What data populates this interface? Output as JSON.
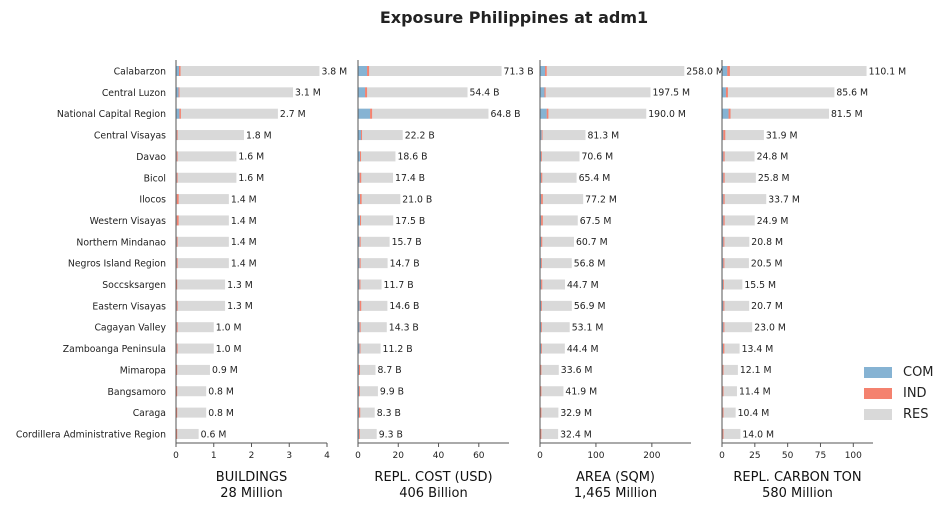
{
  "title": "Exposure Philippines at adm1",
  "regions": [
    "Calabarzon",
    "Central Luzon",
    "National Capital Region",
    "Central Visayas",
    "Davao",
    "Bicol",
    "Ilocos",
    "Western Visayas",
    "Northern Mindanao",
    "Negros Island Region",
    "Soccsksargen",
    "Eastern Visayas",
    "Cagayan Valley",
    "Zamboanga Peninsula",
    "Mimaropa",
    "Bangsamoro",
    "Caraga",
    "Cordillera Administrative Region"
  ],
  "legend": [
    {
      "label": "COM",
      "color": "#86b3d3"
    },
    {
      "label": "IND",
      "color": "#f4826f"
    },
    {
      "label": "RES",
      "color": "#d9d9d9"
    }
  ],
  "chart_data": [
    {
      "type": "bar",
      "orientation": "horizontal",
      "stacked": true,
      "xlabel": "BUILDINGS",
      "subtitle": "28 Million",
      "xlim": [
        0,
        4
      ],
      "ticks": [
        0,
        1,
        2,
        3,
        4
      ],
      "total": [
        3.8,
        3.1,
        2.7,
        1.8,
        1.6,
        1.6,
        1.4,
        1.4,
        1.4,
        1.4,
        1.3,
        1.3,
        1.0,
        1.0,
        0.9,
        0.8,
        0.8,
        0.6
      ],
      "labels": [
        "3.8 M",
        "3.1 M",
        "2.7 M",
        "1.8 M",
        "1.6 M",
        "1.6 M",
        "1.4 M",
        "1.4 M",
        "1.4 M",
        "1.4 M",
        "1.3 M",
        "1.3 M",
        "1.0 M",
        "1.0 M",
        "0.9 M",
        "0.8 M",
        "0.8 M",
        "0.6 M"
      ],
      "COM": [
        0.08,
        0.07,
        0.09,
        0.02,
        0.02,
        0.02,
        0.02,
        0.02,
        0.02,
        0.02,
        0.01,
        0.02,
        0.02,
        0.02,
        0.01,
        0.01,
        0.01,
        0.01
      ],
      "IND": [
        0.04,
        0.02,
        0.04,
        0.01,
        0.01,
        0.01,
        0.05,
        0.05,
        0.01,
        0.01,
        0.01,
        0.01,
        0.01,
        0.01,
        0.01,
        0.01,
        0.01,
        0.01
      ]
    },
    {
      "type": "bar",
      "orientation": "horizontal",
      "stacked": true,
      "xlabel": "REPL. COST (USD)",
      "subtitle": "406 Billion",
      "xlim": [
        0,
        75
      ],
      "ticks": [
        0,
        20,
        40,
        60
      ],
      "total": [
        71.3,
        54.4,
        64.8,
        22.2,
        18.6,
        17.4,
        21.0,
        17.5,
        15.7,
        14.7,
        11.7,
        14.6,
        14.3,
        11.2,
        8.7,
        9.9,
        8.3,
        9.3
      ],
      "labels": [
        "71.3 B",
        "54.4 B",
        "64.8 B",
        "22.2 B",
        "18.6 B",
        "17.4 B",
        "21.0 B",
        "17.5 B",
        "15.7 B",
        "14.7 B",
        "11.7 B",
        "14.6 B",
        "14.3 B",
        "11.2 B",
        "8.7 B",
        "9.9 B",
        "8.3 B",
        "9.3 B"
      ],
      "COM": [
        4.5,
        3.5,
        6.0,
        1.5,
        1.0,
        0.8,
        1.0,
        1.0,
        0.8,
        0.8,
        0.7,
        0.8,
        0.8,
        0.8,
        0.5,
        0.5,
        0.5,
        0.5
      ],
      "IND": [
        1.0,
        1.0,
        1.0,
        0.5,
        0.5,
        0.8,
        0.8,
        0.5,
        0.5,
        0.5,
        0.5,
        0.8,
        0.5,
        0.4,
        0.5,
        0.4,
        0.6,
        0.4
      ]
    },
    {
      "type": "bar",
      "orientation": "horizontal",
      "stacked": true,
      "xlabel": "AREA (SQM)",
      "subtitle": "1,465 Million",
      "xlim": [
        0,
        270
      ],
      "ticks": [
        0,
        100,
        200
      ],
      "total": [
        258.0,
        197.5,
        190.0,
        81.3,
        70.6,
        65.4,
        77.2,
        67.5,
        60.7,
        56.8,
        44.7,
        56.9,
        53.1,
        44.4,
        33.6,
        41.9,
        32.9,
        32.4
      ],
      "labels": [
        "258.0 M",
        "197.5 M",
        "190.0 M",
        "81.3 M",
        "70.6 M",
        "65.4 M",
        "77.2 M",
        "67.5 M",
        "60.7 M",
        "56.8 M",
        "44.7 M",
        "56.9 M",
        "53.1 M",
        "44.4 M",
        "33.6 M",
        "41.9 M",
        "32.9 M",
        "32.4 M"
      ],
      "COM": [
        9,
        8,
        12,
        3,
        2,
        2,
        2,
        2,
        2,
        2,
        2,
        2,
        2,
        2,
        1,
        1,
        1,
        1
      ],
      "IND": [
        3,
        2,
        3,
        1,
        1,
        2,
        3,
        3,
        2,
        1,
        2,
        1,
        1,
        1,
        1,
        1,
        1,
        1
      ]
    },
    {
      "type": "bar",
      "orientation": "horizontal",
      "stacked": true,
      "xlabel": "REPL. CARBON TON",
      "subtitle": "580 Million",
      "xlim": [
        0,
        115
      ],
      "ticks": [
        0,
        25,
        50,
        75,
        100
      ],
      "total": [
        110.1,
        85.6,
        81.5,
        31.9,
        24.8,
        25.8,
        33.7,
        24.9,
        20.8,
        20.5,
        15.5,
        20.7,
        23.0,
        13.4,
        12.1,
        11.4,
        10.4,
        14.0
      ],
      "labels": [
        "110.1 M",
        "85.6 M",
        "81.5 M",
        "31.9 M",
        "24.8 M",
        "25.8 M",
        "33.7 M",
        "24.9 M",
        "20.8 M",
        "20.5 M",
        "15.5 M",
        "20.7 M",
        "23.0 M",
        "13.4 M",
        "12.1 M",
        "11.4 M",
        "10.4 M",
        "14.0 M"
      ],
      "COM": [
        4,
        3,
        5,
        1,
        1,
        1,
        1,
        1,
        1,
        1,
        0.8,
        1,
        1,
        0.8,
        0.5,
        0.5,
        0.5,
        0.5
      ],
      "IND": [
        2,
        1.5,
        1.5,
        1.5,
        1,
        1,
        1,
        1,
        0.8,
        0.8,
        0.5,
        0.8,
        0.8,
        1,
        0.5,
        0.5,
        0.5,
        0.5
      ]
    }
  ]
}
